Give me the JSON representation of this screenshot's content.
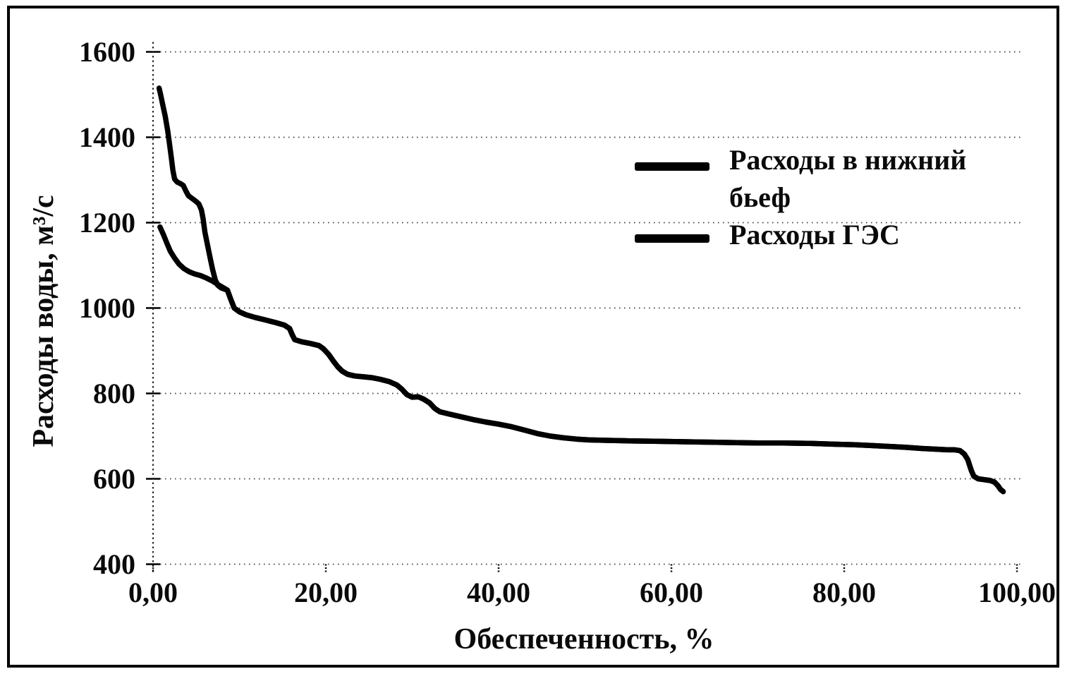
{
  "chart_data": {
    "type": "line",
    "title": "",
    "xlabel": "Обеспеченность, %",
    "ylabel": "Расходы воды, м³/с",
    "xlim": [
      0,
      100
    ],
    "ylim": [
      400,
      1600
    ],
    "grid": "horizontal dotted gridlines at every y tick",
    "legend_position": "inside upper right",
    "line_color": "#000000",
    "x_ticks": {
      "values": [
        0,
        20,
        40,
        60,
        80,
        100
      ],
      "labels": [
        "0,00",
        "20,00",
        "40,00",
        "60,00",
        "80,00",
        "100,00"
      ]
    },
    "y_ticks": {
      "values": [
        400,
        600,
        800,
        1000,
        1200,
        1400,
        1600
      ],
      "labels": [
        "400",
        "600",
        "800",
        "1000",
        "1200",
        "1400",
        "1600"
      ]
    },
    "series": [
      {
        "name": "Расходы в нижний бьеф",
        "color": "#000000",
        "points": [
          [
            0.7,
            1515
          ],
          [
            0.9,
            1498
          ],
          [
            1.1,
            1478
          ],
          [
            1.4,
            1450
          ],
          [
            1.7,
            1415
          ],
          [
            1.9,
            1385
          ],
          [
            2.1,
            1355
          ],
          [
            2.3,
            1322
          ],
          [
            2.5,
            1302
          ],
          [
            2.8,
            1295
          ],
          [
            3.2,
            1291
          ],
          [
            3.5,
            1287
          ],
          [
            3.8,
            1274
          ],
          [
            4.1,
            1263
          ],
          [
            4.5,
            1257
          ],
          [
            4.9,
            1251
          ],
          [
            5.3,
            1244
          ],
          [
            5.6,
            1230
          ],
          [
            5.8,
            1208
          ],
          [
            6.0,
            1178
          ],
          [
            6.3,
            1148
          ],
          [
            6.6,
            1118
          ],
          [
            6.9,
            1090
          ],
          [
            7.2,
            1066
          ],
          [
            7.5,
            1053
          ],
          [
            7.9,
            1047
          ],
          [
            8.3,
            1044
          ],
          [
            8.6,
            1042
          ],
          [
            9.0,
            1020
          ],
          [
            9.4,
            1000
          ],
          [
            10.0,
            991
          ],
          [
            10.8,
            984
          ],
          [
            11.8,
            978
          ],
          [
            13.0,
            972
          ],
          [
            14.2,
            966
          ],
          [
            15.2,
            960
          ],
          [
            15.8,
            952
          ],
          [
            16.1,
            938
          ],
          [
            16.4,
            926
          ],
          [
            17.2,
            921
          ],
          [
            18.2,
            917
          ],
          [
            19.2,
            912
          ],
          [
            19.7,
            905
          ],
          [
            20.3,
            892
          ],
          [
            20.9,
            875
          ],
          [
            21.4,
            862
          ],
          [
            21.9,
            852
          ],
          [
            22.5,
            845
          ],
          [
            23.3,
            841
          ],
          [
            24.3,
            839
          ],
          [
            25.3,
            837
          ],
          [
            26.3,
            833
          ],
          [
            27.3,
            828
          ],
          [
            28.2,
            820
          ],
          [
            28.8,
            810
          ],
          [
            29.4,
            797
          ],
          [
            30.0,
            791
          ],
          [
            30.7,
            792
          ],
          [
            31.3,
            787
          ],
          [
            32.0,
            778
          ],
          [
            32.6,
            765
          ],
          [
            33.2,
            757
          ],
          [
            34.2,
            752
          ],
          [
            35.5,
            746
          ],
          [
            37.0,
            739
          ],
          [
            38.5,
            733
          ],
          [
            40.0,
            728
          ],
          [
            41.5,
            722
          ],
          [
            43.0,
            714
          ],
          [
            44.5,
            706
          ],
          [
            46.0,
            700
          ],
          [
            47.5,
            696
          ],
          [
            49.0,
            693
          ],
          [
            50.5,
            691
          ],
          [
            52.5,
            690
          ],
          [
            55.0,
            689
          ],
          [
            58.0,
            688
          ],
          [
            61.0,
            687
          ],
          [
            64.0,
            686
          ],
          [
            67.0,
            685
          ],
          [
            70.0,
            684
          ],
          [
            73.0,
            684
          ],
          [
            76.0,
            683
          ],
          [
            79.0,
            681
          ],
          [
            81.0,
            680
          ],
          [
            83.0,
            678
          ],
          [
            85.0,
            676
          ],
          [
            87.0,
            674
          ],
          [
            89.0,
            671
          ],
          [
            90.0,
            670
          ],
          [
            91.0,
            669
          ],
          [
            92.0,
            668
          ],
          [
            92.8,
            668
          ],
          [
            93.4,
            666
          ],
          [
            93.9,
            658
          ],
          [
            94.3,
            645
          ],
          [
            94.7,
            620
          ],
          [
            95.0,
            606
          ],
          [
            95.5,
            600
          ],
          [
            96.2,
            598
          ],
          [
            96.9,
            596
          ],
          [
            97.4,
            592
          ],
          [
            97.8,
            584
          ],
          [
            98.1,
            575
          ],
          [
            98.4,
            570
          ]
        ]
      },
      {
        "name": "Расходы ГЭС",
        "color": "#000000",
        "points": [
          [
            0.8,
            1190
          ],
          [
            1.2,
            1172
          ],
          [
            1.6,
            1152
          ],
          [
            2.0,
            1133
          ],
          [
            2.5,
            1117
          ],
          [
            3.0,
            1103
          ],
          [
            3.6,
            1092
          ],
          [
            4.2,
            1085
          ],
          [
            4.8,
            1080
          ],
          [
            5.5,
            1076
          ],
          [
            6.2,
            1070
          ],
          [
            6.9,
            1063
          ],
          [
            7.6,
            1054
          ],
          [
            8.2,
            1047
          ],
          [
            8.6,
            1042
          ],
          [
            9.0,
            1020
          ],
          [
            9.4,
            1000
          ],
          [
            10.0,
            991
          ],
          [
            10.8,
            984
          ],
          [
            11.8,
            978
          ],
          [
            13.0,
            972
          ],
          [
            14.2,
            966
          ],
          [
            15.2,
            960
          ],
          [
            15.8,
            952
          ],
          [
            16.1,
            938
          ],
          [
            16.4,
            926
          ],
          [
            17.2,
            921
          ],
          [
            18.2,
            917
          ],
          [
            19.2,
            912
          ],
          [
            19.7,
            905
          ],
          [
            20.3,
            892
          ],
          [
            20.9,
            875
          ],
          [
            21.4,
            862
          ],
          [
            21.9,
            852
          ],
          [
            22.5,
            845
          ],
          [
            23.3,
            841
          ],
          [
            24.3,
            839
          ],
          [
            25.3,
            837
          ],
          [
            26.3,
            833
          ],
          [
            27.3,
            828
          ],
          [
            28.2,
            820
          ],
          [
            28.8,
            810
          ],
          [
            29.4,
            797
          ],
          [
            30.0,
            791
          ],
          [
            30.7,
            792
          ],
          [
            31.3,
            787
          ],
          [
            32.0,
            778
          ],
          [
            32.6,
            765
          ],
          [
            33.2,
            757
          ],
          [
            34.2,
            752
          ],
          [
            35.5,
            746
          ],
          [
            37.0,
            739
          ],
          [
            38.5,
            733
          ],
          [
            40.0,
            728
          ],
          [
            41.5,
            722
          ],
          [
            43.0,
            714
          ],
          [
            44.5,
            706
          ],
          [
            46.0,
            700
          ],
          [
            47.5,
            696
          ],
          [
            49.0,
            693
          ],
          [
            50.5,
            691
          ],
          [
            52.5,
            690
          ],
          [
            55.0,
            689
          ],
          [
            58.0,
            688
          ],
          [
            61.0,
            687
          ],
          [
            64.0,
            686
          ],
          [
            67.0,
            685
          ],
          [
            70.0,
            684
          ],
          [
            73.0,
            684
          ],
          [
            76.0,
            683
          ],
          [
            79.0,
            681
          ],
          [
            81.0,
            680
          ],
          [
            83.0,
            678
          ],
          [
            85.0,
            676
          ],
          [
            87.0,
            674
          ],
          [
            89.0,
            671
          ],
          [
            90.0,
            670
          ],
          [
            91.0,
            669
          ],
          [
            92.0,
            668
          ],
          [
            92.8,
            668
          ],
          [
            93.4,
            666
          ],
          [
            93.9,
            658
          ],
          [
            94.3,
            645
          ],
          [
            94.7,
            620
          ],
          [
            95.0,
            606
          ],
          [
            95.5,
            600
          ],
          [
            96.2,
            598
          ],
          [
            96.9,
            596
          ],
          [
            97.4,
            592
          ],
          [
            97.8,
            584
          ],
          [
            98.1,
            575
          ],
          [
            98.4,
            570
          ]
        ]
      }
    ]
  }
}
